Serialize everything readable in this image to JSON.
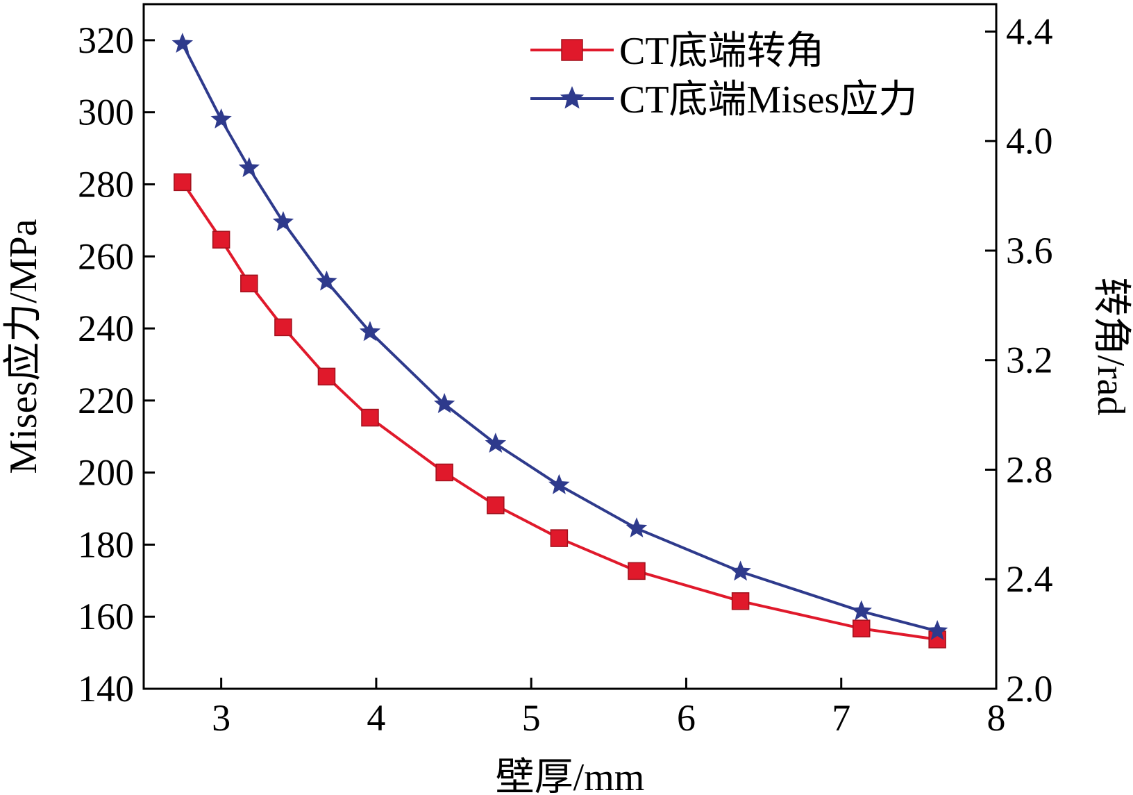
{
  "chart_data": {
    "type": "line",
    "title": "",
    "xlabel": "壁厚/mm",
    "ylabel_left": "Mises应力/MPa",
    "ylabel_right": "转角/rad",
    "xlim": [
      2.5,
      8
    ],
    "ylim_left": [
      140,
      330
    ],
    "ylim_right": [
      2.0,
      4.5
    ],
    "x_ticks": [
      "3",
      "4",
      "5",
      "6",
      "7",
      "8"
    ],
    "y_left_ticks": [
      "140",
      "160",
      "180",
      "200",
      "220",
      "240",
      "260",
      "280",
      "300",
      "320"
    ],
    "y_right_ticks": [
      "2.0",
      "2.4",
      "2.8",
      "3.2",
      "3.6",
      "4.0",
      "4.4"
    ],
    "grid": false,
    "legend_position": "top-right",
    "series": [
      {
        "name": "CT底端转角",
        "axis": "right",
        "marker": "square",
        "color": "#e0192b",
        "x": [
          2.75,
          3.0,
          3.18,
          3.4,
          3.68,
          3.96,
          4.44,
          4.77,
          5.18,
          5.68,
          6.35,
          7.13,
          7.62
        ],
        "values": [
          3.85,
          3.64,
          3.48,
          3.32,
          3.14,
          2.99,
          2.79,
          2.67,
          2.55,
          2.43,
          2.32,
          2.22,
          2.18
        ]
      },
      {
        "name": "CT底端Mises应力",
        "axis": "left",
        "marker": "star",
        "color": "#2e3a8c",
        "x": [
          2.75,
          3.0,
          3.18,
          3.4,
          3.68,
          3.96,
          4.44,
          4.77,
          5.18,
          5.68,
          6.35,
          7.13,
          7.62
        ],
        "values": [
          319,
          298,
          284.5,
          269.5,
          253,
          239,
          219,
          208,
          196.5,
          184.5,
          172.5,
          161.5,
          156
        ]
      }
    ]
  }
}
